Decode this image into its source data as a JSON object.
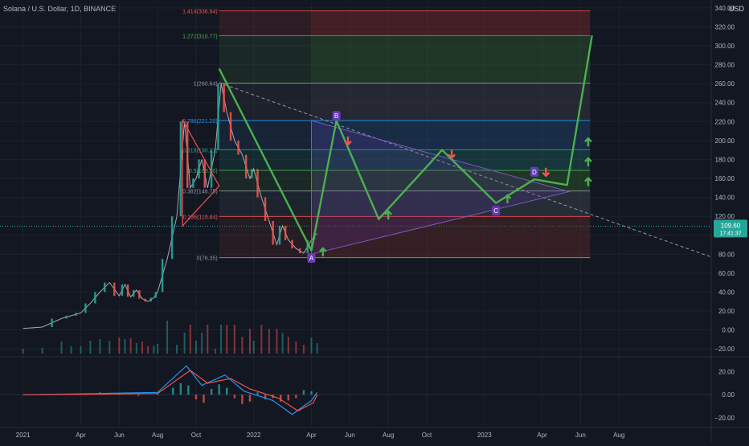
{
  "header": {
    "symbol": "Solana / U.S. Dollar",
    "interval": "1D",
    "exchange": "BINANCE",
    "currency": "USD"
  },
  "price_badge": {
    "price": "109.60",
    "countdown": "17:41:37",
    "color": "#26a69a"
  },
  "colors": {
    "bg": "#131722",
    "grid": "#1e222d",
    "axis_text": "#b2b5be",
    "up": "#26a69a",
    "down": "#ef5350",
    "projection": "#4caf50",
    "label_purple": "#673ab7"
  },
  "chart_data": [
    {
      "type": "line",
      "title": "Solana / U.S. Dollar, 1D, BINANCE",
      "yaxis": {
        "ticks": [
          340,
          320,
          300,
          280,
          260,
          240,
          220,
          200,
          180,
          160,
          140,
          120,
          100,
          80,
          60,
          40,
          20,
          0,
          -20
        ],
        "tick_labels": [
          "340.00",
          "320.00",
          "300.00",
          "280.00",
          "260.00",
          "240.00",
          "220.00",
          "200.00",
          "180.00",
          "160.00",
          "140.00",
          "120.00",
          "100.00",
          "80.00",
          "60.00",
          "40.00",
          "20.00",
          "0.00",
          "−20.00"
        ],
        "range": [
          -25,
          345
        ]
      },
      "xaxis": {
        "labels": [
          "2021",
          "Apr",
          "Jun",
          "Aug",
          "Oct",
          "2022",
          "Apr",
          "Jun",
          "Aug",
          "Oct",
          "2023",
          "Apr",
          "Jun",
          "Aug"
        ],
        "label_months": [
          0,
          3,
          5,
          7,
          9,
          12,
          15,
          17,
          19,
          21,
          24,
          27,
          29,
          31
        ],
        "range_months": [
          -1.2,
          35.8
        ]
      },
      "price_history": [
        [
          0,
          1.5
        ],
        [
          1,
          3
        ],
        [
          2,
          12
        ],
        [
          2.5,
          15
        ],
        [
          3,
          18
        ],
        [
          3.5,
          28
        ],
        [
          4,
          40
        ],
        [
          4.5,
          50
        ],
        [
          5,
          36
        ],
        [
          5.3,
          48
        ],
        [
          5.6,
          35
        ],
        [
          5.9,
          42
        ],
        [
          6.2,
          33
        ],
        [
          6.5,
          30
        ],
        [
          6.8,
          34
        ],
        [
          7,
          40
        ],
        [
          7.5,
          75
        ],
        [
          8,
          120
        ],
        [
          8.4,
          220
        ],
        [
          8.7,
          150
        ],
        [
          9,
          160
        ],
        [
          9.3,
          180
        ],
        [
          9.6,
          150
        ],
        [
          10,
          190
        ],
        [
          10.3,
          260
        ],
        [
          10.6,
          230
        ],
        [
          11,
          200
        ],
        [
          11.4,
          185
        ],
        [
          11.8,
          160
        ],
        [
          12,
          170
        ],
        [
          12.4,
          140
        ],
        [
          12.8,
          115
        ],
        [
          13.2,
          90
        ],
        [
          13.5,
          110
        ],
        [
          13.8,
          95
        ],
        [
          14.2,
          86
        ],
        [
          14.6,
          81
        ],
        [
          15,
          95
        ],
        [
          15.3,
          102
        ]
      ],
      "fib_levels": [
        {
          "label": "1.414(336.94)",
          "value": 336.94,
          "color": "#ef5350"
        },
        {
          "label": "1.272(310.77)",
          "value": 310.77,
          "color": "#4caf50"
        },
        {
          "label": "1(260.64)",
          "value": 260.64,
          "color": "#9598a1"
        },
        {
          "label": "0.786(221.20)",
          "value": 221.2,
          "color": "#2196f3"
        },
        {
          "label": "0.618(190.21)",
          "value": 190.21,
          "color": "#26a69a"
        },
        {
          "label": "0.5(168.50)",
          "value": 168.5,
          "color": "#4caf50"
        },
        {
          "label": "0.382(146.75)",
          "value": 146.75,
          "color": "#9598a1"
        },
        {
          "label": "0.236(119.84)",
          "value": 119.84,
          "color": "#ef5350"
        },
        {
          "label": "0(76.35)",
          "value": 76.35,
          "color": "#9598a1"
        }
      ],
      "projection_path": [
        [
          10.2,
          276
        ],
        [
          15,
          84
        ],
        [
          16.3,
          221
        ],
        [
          18.5,
          117
        ],
        [
          21.8,
          190
        ],
        [
          24.6,
          134
        ],
        [
          26.6,
          159
        ],
        [
          28.3,
          153
        ],
        [
          29.6,
          311
        ]
      ],
      "pattern_labels": [
        {
          "text": "A",
          "x": 15,
          "y": 76
        },
        {
          "text": "B",
          "x": 16.3,
          "y": 226
        },
        {
          "text": "C",
          "x": 24.6,
          "y": 126
        },
        {
          "text": "D",
          "x": 26.6,
          "y": 167
        }
      ],
      "arrows": [
        {
          "dir": "up",
          "x": 15.6,
          "y": 82
        },
        {
          "dir": "down",
          "x": 16.9,
          "y": 200
        },
        {
          "dir": "up",
          "x": 19,
          "y": 121
        },
        {
          "dir": "down",
          "x": 22.3,
          "y": 186
        },
        {
          "dir": "up",
          "x": 25.2,
          "y": 138
        },
        {
          "dir": "down",
          "x": 27.2,
          "y": 167
        },
        {
          "dir": "up",
          "x": 29.4,
          "y": 156
        },
        {
          "dir": "up",
          "x": 29.4,
          "y": 177
        },
        {
          "dir": "up",
          "x": 29.4,
          "y": 198
        }
      ],
      "trendline": {
        "from": [
          10.2,
          261
        ],
        "to": [
          35.8,
          77
        ]
      },
      "triangle": [
        [
          15,
          221
        ],
        [
          28.4,
          146
        ],
        [
          15,
          80
        ]
      ],
      "left_triangle": [
        [
          8.3,
          222
        ],
        [
          10.2,
          152
        ],
        [
          8.3,
          110
        ]
      ]
    },
    {
      "type": "line",
      "title": "",
      "yaxis": {
        "ticks": [
          20,
          0,
          -20
        ],
        "tick_labels": [
          "20.00",
          "0.00",
          "−20.00"
        ],
        "range": [
          -27,
          30
        ]
      },
      "series": [
        {
          "name": "",
          "color": "#2196f3",
          "values": [
            [
              0,
              0
            ],
            [
              4,
              1
            ],
            [
              7,
              2
            ],
            [
              8.5,
              25
            ],
            [
              9.3,
              8
            ],
            [
              10.5,
              17
            ],
            [
              11.5,
              3
            ],
            [
              13,
              -5
            ],
            [
              14,
              -17
            ],
            [
              15,
              -5
            ],
            [
              15.3,
              2
            ]
          ]
        },
        {
          "name": "",
          "color": "#ef5350",
          "values": [
            [
              0,
              0
            ],
            [
              4,
              0.5
            ],
            [
              7,
              1
            ],
            [
              8.7,
              21
            ],
            [
              9.6,
              10
            ],
            [
              10.8,
              14
            ],
            [
              11.8,
              5
            ],
            [
              13.3,
              -3
            ],
            [
              14.3,
              -14
            ],
            [
              15.1,
              -7
            ],
            [
              15.3,
              0
            ]
          ]
        }
      ],
      "histogram": [
        [
          3,
          1
        ],
        [
          4,
          2
        ],
        [
          5,
          1
        ],
        [
          6,
          -1
        ],
        [
          7,
          2
        ],
        [
          7.8,
          6
        ],
        [
          8.2,
          10
        ],
        [
          8.6,
          8
        ],
        [
          9,
          -4
        ],
        [
          9.4,
          -7
        ],
        [
          9.8,
          5
        ],
        [
          10.2,
          9
        ],
        [
          10.6,
          6
        ],
        [
          11,
          -3
        ],
        [
          11.4,
          -8
        ],
        [
          11.8,
          -6
        ],
        [
          12.2,
          2
        ],
        [
          12.6,
          -4
        ],
        [
          13,
          -3
        ],
        [
          13.4,
          -6
        ],
        [
          13.8,
          -5
        ],
        [
          14.2,
          -3
        ],
        [
          14.6,
          4
        ],
        [
          15,
          3
        ]
      ]
    }
  ]
}
